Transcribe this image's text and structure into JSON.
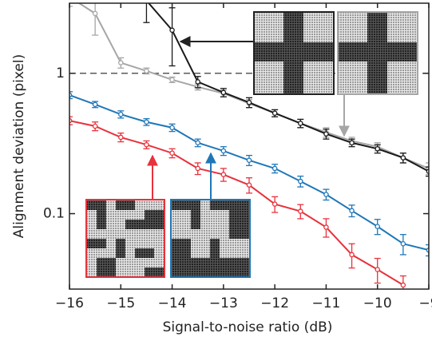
{
  "chart_data": {
    "type": "line",
    "x_label": "Signal-to-noise ratio (dB)",
    "y_label": "Alignment deviation (pixel)",
    "x": [
      -16,
      -15.5,
      -15,
      -14.5,
      -14,
      -13.5,
      -13,
      -12.5,
      -12,
      -11.5,
      -11,
      -10.5,
      -10,
      -9.5,
      -9
    ],
    "series": [
      {
        "color": "#a6a6a6",
        "values": [
          3.5,
          2.67,
          1.19,
          1.04,
          0.9,
          0.8,
          0.72,
          0.61,
          0.52,
          0.44,
          0.38,
          0.33,
          0.3,
          0.25,
          0.21
        ],
        "errors": [
          0.5,
          0.8,
          0.1,
          0.05,
          0.04,
          0.04,
          0.04,
          0.04,
          0.03,
          0.03,
          0.03,
          0.02,
          0.02,
          0.02,
          0.02
        ]
      },
      {
        "color": "#1a1a1a",
        "values": [
          null,
          null,
          null,
          3.3,
          2.03,
          0.87,
          0.73,
          0.62,
          0.52,
          0.44,
          0.37,
          0.32,
          0.29,
          0.25,
          0.2
        ],
        "errors": [
          null,
          null,
          null,
          1.0,
          0.9,
          0.08,
          0.05,
          0.05,
          0.03,
          0.03,
          0.03,
          0.02,
          0.02,
          0.02,
          0.015
        ]
      },
      {
        "color": "#1f77b8",
        "values": [
          0.7,
          0.6,
          0.51,
          0.45,
          0.41,
          0.32,
          0.28,
          0.24,
          0.21,
          0.17,
          0.137,
          0.105,
          0.081,
          0.061,
          0.055
        ],
        "errors": [
          0.04,
          0.03,
          0.03,
          0.025,
          0.025,
          0.02,
          0.02,
          0.02,
          0.015,
          0.015,
          0.012,
          0.01,
          0.01,
          0.01,
          0.005
        ]
      },
      {
        "color": "#e8323c",
        "values": [
          0.46,
          0.42,
          0.35,
          0.31,
          0.27,
          0.21,
          0.19,
          0.16,
          0.117,
          0.104,
          0.08,
          0.051,
          0.04,
          0.031,
          null
        ],
        "errors": [
          0.03,
          0.03,
          0.025,
          0.02,
          0.02,
          0.02,
          0.02,
          0.02,
          0.015,
          0.012,
          0.012,
          0.01,
          0.008,
          0.005,
          null
        ]
      }
    ],
    "xlim": [
      -16,
      -9
    ],
    "xticks": [
      {
        "value": -16,
        "label": "−16"
      },
      {
        "value": -15,
        "label": "−15"
      },
      {
        "value": -14,
        "label": "−14"
      },
      {
        "value": -13,
        "label": "−13"
      },
      {
        "value": -12,
        "label": "−12"
      },
      {
        "value": -11,
        "label": "−11"
      },
      {
        "value": -10,
        "label": "−10"
      },
      {
        "value": -9,
        "label": "−9"
      }
    ],
    "ylim": [
      0.029,
      3.16
    ],
    "yticks": [
      0.1,
      1
    ],
    "y_scale": "log",
    "hline": 1
  }
}
